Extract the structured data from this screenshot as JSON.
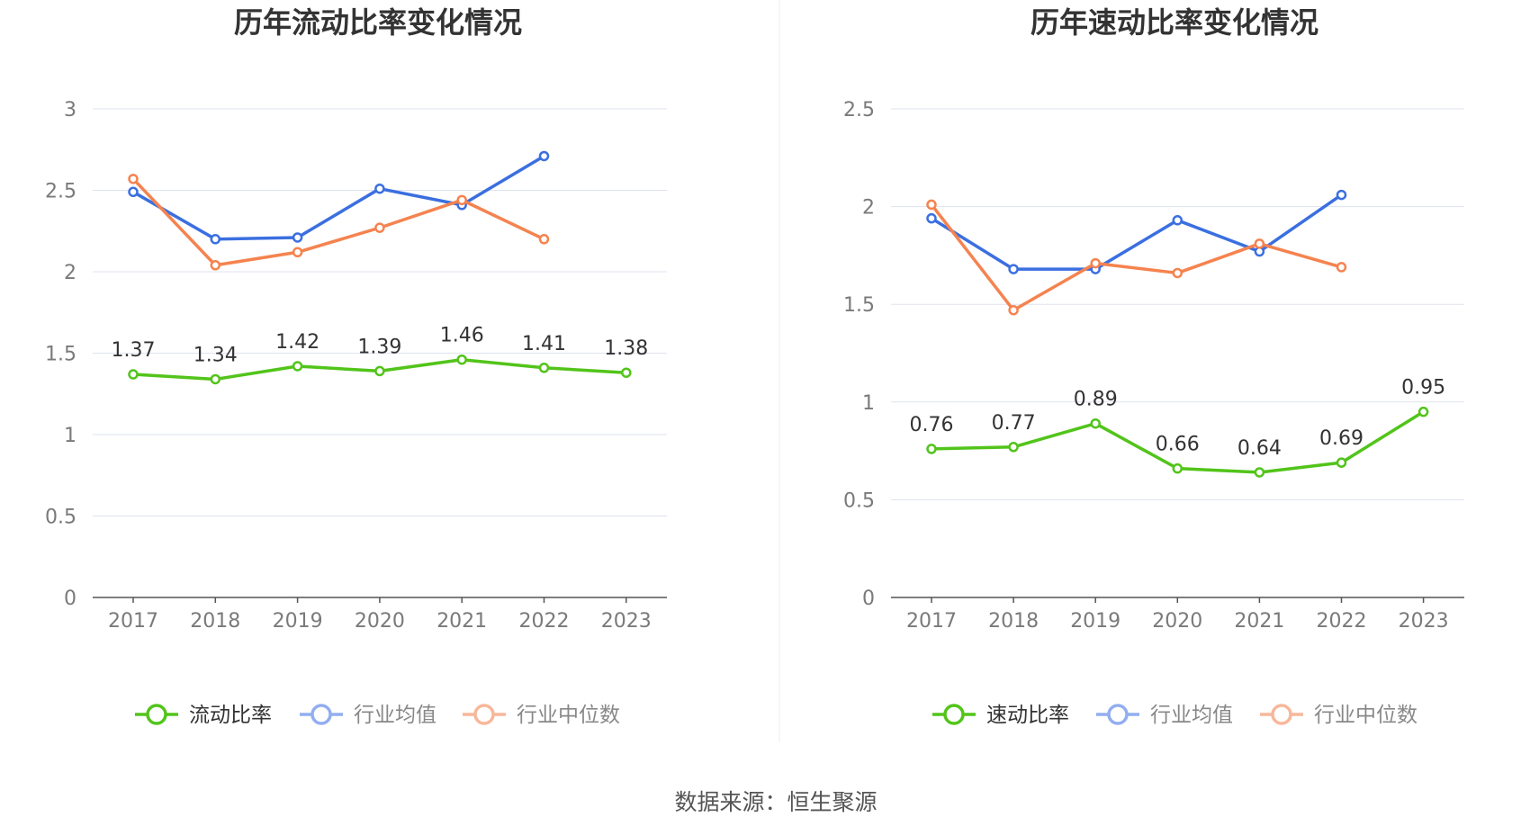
{
  "chart_data": [
    {
      "type": "line",
      "title": "历年流动比率变化情况",
      "categories": [
        "2017",
        "2018",
        "2019",
        "2020",
        "2021",
        "2022",
        "2023"
      ],
      "yticks": [
        "0",
        "0.5",
        "1",
        "1.5",
        "2",
        "2.5",
        "3"
      ],
      "ylim": [
        0,
        3
      ],
      "series": [
        {
          "name": "流动比率",
          "color": "#52c41a",
          "values": [
            1.37,
            1.34,
            1.42,
            1.39,
            1.46,
            1.41,
            1.38
          ],
          "labels": [
            "1.37",
            "1.34",
            "1.42",
            "1.39",
            "1.46",
            "1.41",
            "1.38"
          ]
        },
        {
          "name": "行业均值",
          "color": "#3b6fe0",
          "values": [
            2.49,
            2.2,
            2.21,
            2.51,
            2.41,
            2.71,
            null
          ]
        },
        {
          "name": "行业中位数",
          "color": "#f5834f",
          "values": [
            2.57,
            2.04,
            2.12,
            2.27,
            2.44,
            2.2,
            null
          ]
        }
      ]
    },
    {
      "type": "line",
      "title": "历年速动比率变化情况",
      "categories": [
        "2017",
        "2018",
        "2019",
        "2020",
        "2021",
        "2022",
        "2023"
      ],
      "yticks": [
        "0",
        "0.5",
        "1",
        "1.5",
        "2",
        "2.5"
      ],
      "ylim": [
        0,
        2.5
      ],
      "series": [
        {
          "name": "速动比率",
          "color": "#52c41a",
          "values": [
            0.76,
            0.77,
            0.89,
            0.66,
            0.64,
            0.69,
            0.95
          ],
          "labels": [
            "0.76",
            "0.77",
            "0.89",
            "0.66",
            "0.64",
            "0.69",
            "0.95"
          ]
        },
        {
          "name": "行业均值",
          "color": "#3b6fe0",
          "values": [
            1.94,
            1.68,
            1.68,
            1.93,
            1.77,
            2.06,
            null
          ]
        },
        {
          "name": "行业中位数",
          "color": "#f5834f",
          "values": [
            2.01,
            1.47,
            1.71,
            1.66,
            1.81,
            1.69,
            null
          ]
        }
      ]
    }
  ],
  "legend_colors": {
    "main": "#52c41a",
    "avg": "#92aef0",
    "median": "#f8b79a"
  },
  "source": "数据来源：恒生聚源"
}
